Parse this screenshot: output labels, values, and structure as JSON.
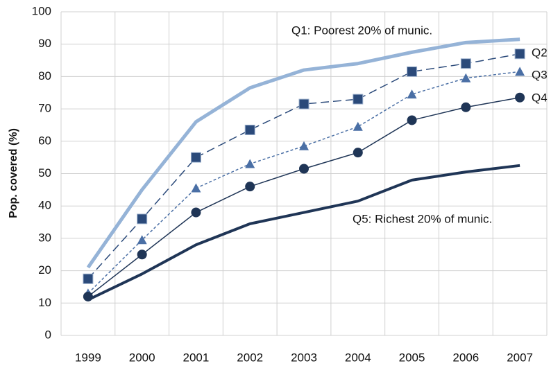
{
  "chart_data": {
    "type": "line",
    "y_label": "Pop. covered (%)",
    "categories": [
      "1999",
      "2000",
      "2001",
      "2002",
      "2003",
      "2004",
      "2005",
      "2006",
      "2007"
    ],
    "ylim": [
      0,
      100
    ],
    "yticks": [
      0,
      10,
      20,
      30,
      40,
      50,
      60,
      70,
      80,
      90,
      100
    ],
    "grid": true,
    "series": [
      {
        "name": "Q1: Poorest 20% of munic.",
        "color": "#95b3d7",
        "line_width": 5,
        "dash": "solid",
        "marker": "none",
        "values": [
          21,
          45,
          66,
          76.5,
          82,
          84,
          87.5,
          90.5,
          91.5
        ]
      },
      {
        "name": "Q2",
        "color": "#2b4a7a",
        "line_width": 1.5,
        "dash": "dashed",
        "marker": "square",
        "values": [
          17.5,
          36,
          55,
          63.5,
          71.5,
          73,
          81.5,
          84,
          87
        ]
      },
      {
        "name": "Q3",
        "color": "#4a6fa5",
        "line_width": 1.5,
        "dash": "dotted",
        "marker": "triangle",
        "values": [
          13,
          29.5,
          45.5,
          53,
          58.5,
          64.5,
          74.5,
          79.5,
          81.5
        ]
      },
      {
        "name": "Q4",
        "color": "#1f3556",
        "line_width": 1.5,
        "dash": "solid",
        "marker": "circle",
        "values": [
          12,
          25,
          38,
          46,
          51.5,
          56.5,
          66.5,
          70.5,
          73.5
        ]
      },
      {
        "name": "Q5: Richest 20% of munic.",
        "color": "#1f3556",
        "line_width": 4,
        "dash": "solid",
        "marker": "none",
        "values": [
          11,
          19,
          28,
          34.5,
          38,
          41.5,
          48,
          50.5,
          52.5
        ]
      }
    ]
  }
}
